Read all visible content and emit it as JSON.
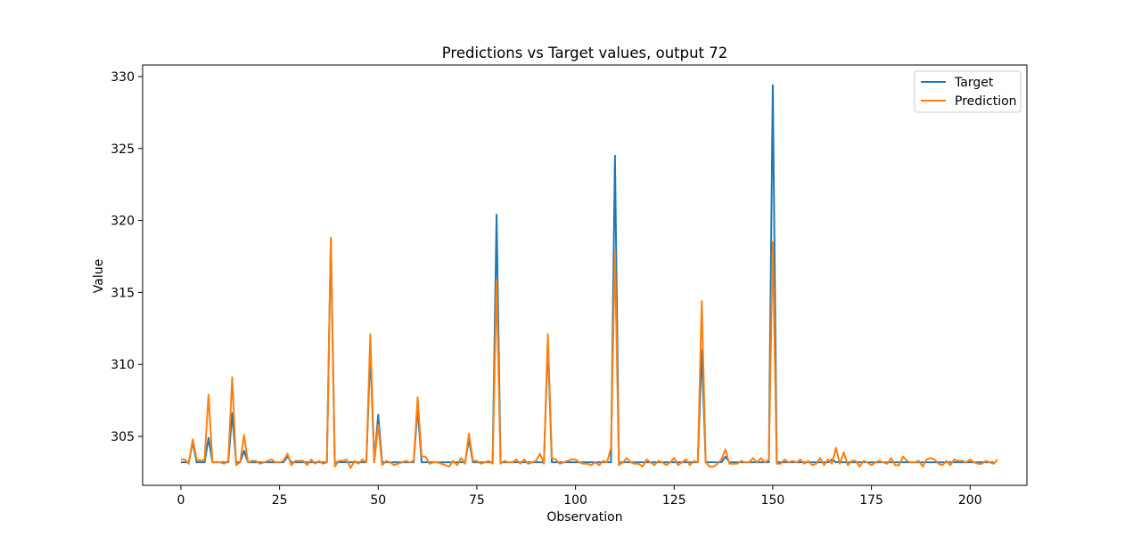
{
  "chart_data": {
    "type": "line",
    "title": "Predictions vs Target values, output 72",
    "xlabel": "Observation",
    "ylabel": "Value",
    "xlim": [
      -9.7,
      214.4
    ],
    "ylim": [
      301.6,
      330.8
    ],
    "xticks": [
      0,
      25,
      50,
      75,
      100,
      125,
      150,
      175,
      200
    ],
    "yticks": [
      305,
      310,
      315,
      320,
      325,
      330
    ],
    "grid": false,
    "legend_position": "top-right",
    "colors": {
      "Target": "#1f77b4",
      "Prediction": "#ff7f0e"
    },
    "series": [
      {
        "name": "Target",
        "color": "#1f77b4",
        "values": [
          303.2,
          303.2,
          303.2,
          304.6,
          303.2,
          303.2,
          303.2,
          304.9,
          303.2,
          303.2,
          303.2,
          303.2,
          303.2,
          306.6,
          303.2,
          303.2,
          304.0,
          303.2,
          303.2,
          303.2,
          303.2,
          303.2,
          303.2,
          303.2,
          303.2,
          303.2,
          303.2,
          303.6,
          303.2,
          303.2,
          303.2,
          303.2,
          303.2,
          303.2,
          303.2,
          303.2,
          303.2,
          303.2,
          318.8,
          303.2,
          303.2,
          303.2,
          303.2,
          303.2,
          303.2,
          303.2,
          303.2,
          303.2,
          310.9,
          303.2,
          306.5,
          303.2,
          303.2,
          303.2,
          303.2,
          303.2,
          303.2,
          303.2,
          303.2,
          303.2,
          307.0,
          303.2,
          303.2,
          303.2,
          303.2,
          303.2,
          303.2,
          303.2,
          303.2,
          303.2,
          303.2,
          303.2,
          303.2,
          304.8,
          303.2,
          303.2,
          303.2,
          303.2,
          303.2,
          303.2,
          320.4,
          303.2,
          303.2,
          303.2,
          303.2,
          303.2,
          303.2,
          303.2,
          303.2,
          303.2,
          303.2,
          303.2,
          303.2,
          311.5,
          303.2,
          303.2,
          303.2,
          303.2,
          303.2,
          303.2,
          303.2,
          303.2,
          303.2,
          303.2,
          303.2,
          303.2,
          303.2,
          303.2,
          303.2,
          303.2,
          324.5,
          303.2,
          303.2,
          303.2,
          303.2,
          303.2,
          303.2,
          303.2,
          303.2,
          303.2,
          303.2,
          303.2,
          303.2,
          303.2,
          303.2,
          303.2,
          303.2,
          303.2,
          303.2,
          303.2,
          303.2,
          303.2,
          311.0,
          303.2,
          303.2,
          303.2,
          303.2,
          303.2,
          303.6,
          303.2,
          303.2,
          303.2,
          303.2,
          303.2,
          303.2,
          303.2,
          303.2,
          303.2,
          303.2,
          303.2,
          329.4,
          303.2,
          303.2,
          303.2,
          303.2,
          303.2,
          303.2,
          303.2,
          303.2,
          303.2,
          303.2,
          303.2,
          303.2,
          303.2,
          303.2,
          303.4,
          303.2,
          303.2,
          303.2,
          303.2,
          303.2,
          303.2,
          303.2,
          303.2,
          303.2,
          303.2,
          303.2,
          303.2,
          303.2,
          303.2,
          303.2,
          303.2,
          303.2,
          303.2,
          303.2,
          303.2,
          303.2,
          303.2,
          303.2,
          303.2,
          303.2,
          303.2,
          303.2,
          303.2,
          303.2,
          303.2,
          303.2,
          303.2,
          303.2,
          303.2,
          303.2,
          303.2,
          303.2,
          303.2,
          303.2,
          303.2,
          303.2
        ]
      },
      {
        "name": "Prediction",
        "color": "#ff7f0e",
        "values": [
          303.4,
          303.4,
          303.1,
          304.8,
          303.4,
          303.3,
          303.4,
          307.9,
          303.2,
          303.2,
          303.2,
          303.1,
          303.3,
          309.1,
          303.0,
          303.2,
          305.1,
          303.2,
          303.3,
          303.3,
          303.1,
          303.2,
          303.3,
          303.4,
          303.2,
          303.2,
          303.3,
          303.8,
          303.0,
          303.3,
          303.3,
          303.3,
          303.0,
          303.4,
          303.1,
          303.3,
          303.1,
          303.2,
          318.8,
          302.9,
          303.3,
          303.3,
          303.4,
          302.8,
          303.3,
          303.1,
          303.4,
          303.2,
          312.1,
          303.2,
          305.8,
          303.0,
          303.3,
          303.2,
          303.0,
          303.1,
          303.2,
          303.3,
          303.2,
          303.3,
          307.7,
          303.6,
          303.6,
          303.1,
          303.2,
          303.2,
          303.1,
          303.0,
          302.9,
          303.3,
          303.0,
          303.5,
          303.1,
          305.2,
          303.3,
          303.3,
          303.1,
          303.2,
          303.3,
          303.1,
          315.8,
          303.1,
          303.3,
          303.2,
          303.2,
          303.4,
          303.1,
          303.4,
          303.1,
          303.2,
          303.3,
          303.8,
          303.1,
          312.1,
          303.5,
          303.4,
          303.1,
          303.2,
          303.3,
          303.4,
          303.4,
          303.2,
          303.1,
          303.1,
          303.0,
          303.2,
          303.0,
          303.3,
          303.2,
          304.2,
          317.9,
          303.0,
          303.2,
          303.5,
          303.2,
          303.1,
          303.1,
          302.9,
          303.4,
          303.2,
          303.0,
          303.3,
          303.2,
          303.0,
          303.2,
          303.5,
          303.0,
          303.2,
          303.4,
          303.0,
          303.3,
          303.2,
          314.4,
          303.2,
          302.9,
          302.9,
          303.1,
          303.4,
          304.1,
          303.1,
          303.1,
          303.1,
          303.3,
          303.2,
          303.2,
          303.5,
          303.2,
          303.5,
          303.2,
          303.4,
          318.5,
          303.1,
          303.1,
          303.4,
          303.2,
          303.3,
          303.2,
          303.4,
          303.1,
          303.3,
          303.0,
          303.1,
          303.5,
          303.0,
          303.4,
          303.1,
          304.2,
          303.1,
          303.9,
          303.0,
          303.3,
          303.3,
          302.9,
          303.3,
          303.2,
          303.0,
          303.2,
          303.3,
          303.2,
          303.1,
          303.5,
          303.0,
          303.0,
          303.6,
          303.3,
          303.2,
          303.2,
          303.3,
          302.9,
          303.4,
          303.5,
          303.4,
          303.1,
          303.0,
          303.3,
          303.0,
          303.4,
          303.3,
          303.3,
          303.2,
          303.4,
          303.2,
          303.1,
          303.1,
          303.3,
          303.2,
          303.1,
          303.4
        ]
      }
    ]
  }
}
